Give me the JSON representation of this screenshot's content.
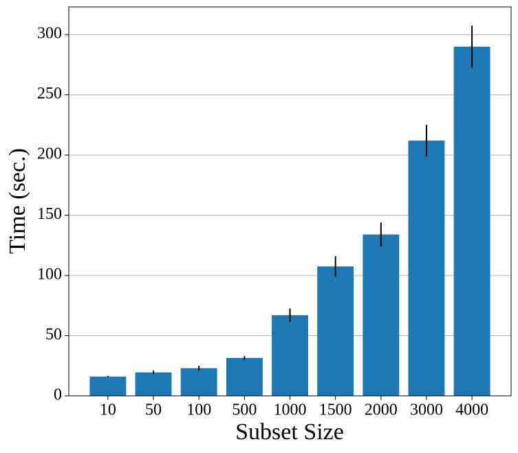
{
  "chart_data": {
    "type": "bar",
    "xlabel": "Subset Size",
    "ylabel": "Time (sec.)",
    "categories": [
      "10",
      "50",
      "100",
      "500",
      "1000",
      "1500",
      "2000",
      "3000",
      "4000"
    ],
    "values": [
      16,
      19.5,
      23,
      31.5,
      67,
      107.5,
      134,
      212,
      290
    ],
    "errors": [
      0.5,
      1.5,
      2,
      1.5,
      5.5,
      8.5,
      10,
      13,
      17.5
    ],
    "color": "#1f77b4",
    "ylim": [
      0,
      323
    ],
    "yticks": [
      0,
      50,
      100,
      150,
      200,
      250,
      300
    ],
    "grid": true
  }
}
